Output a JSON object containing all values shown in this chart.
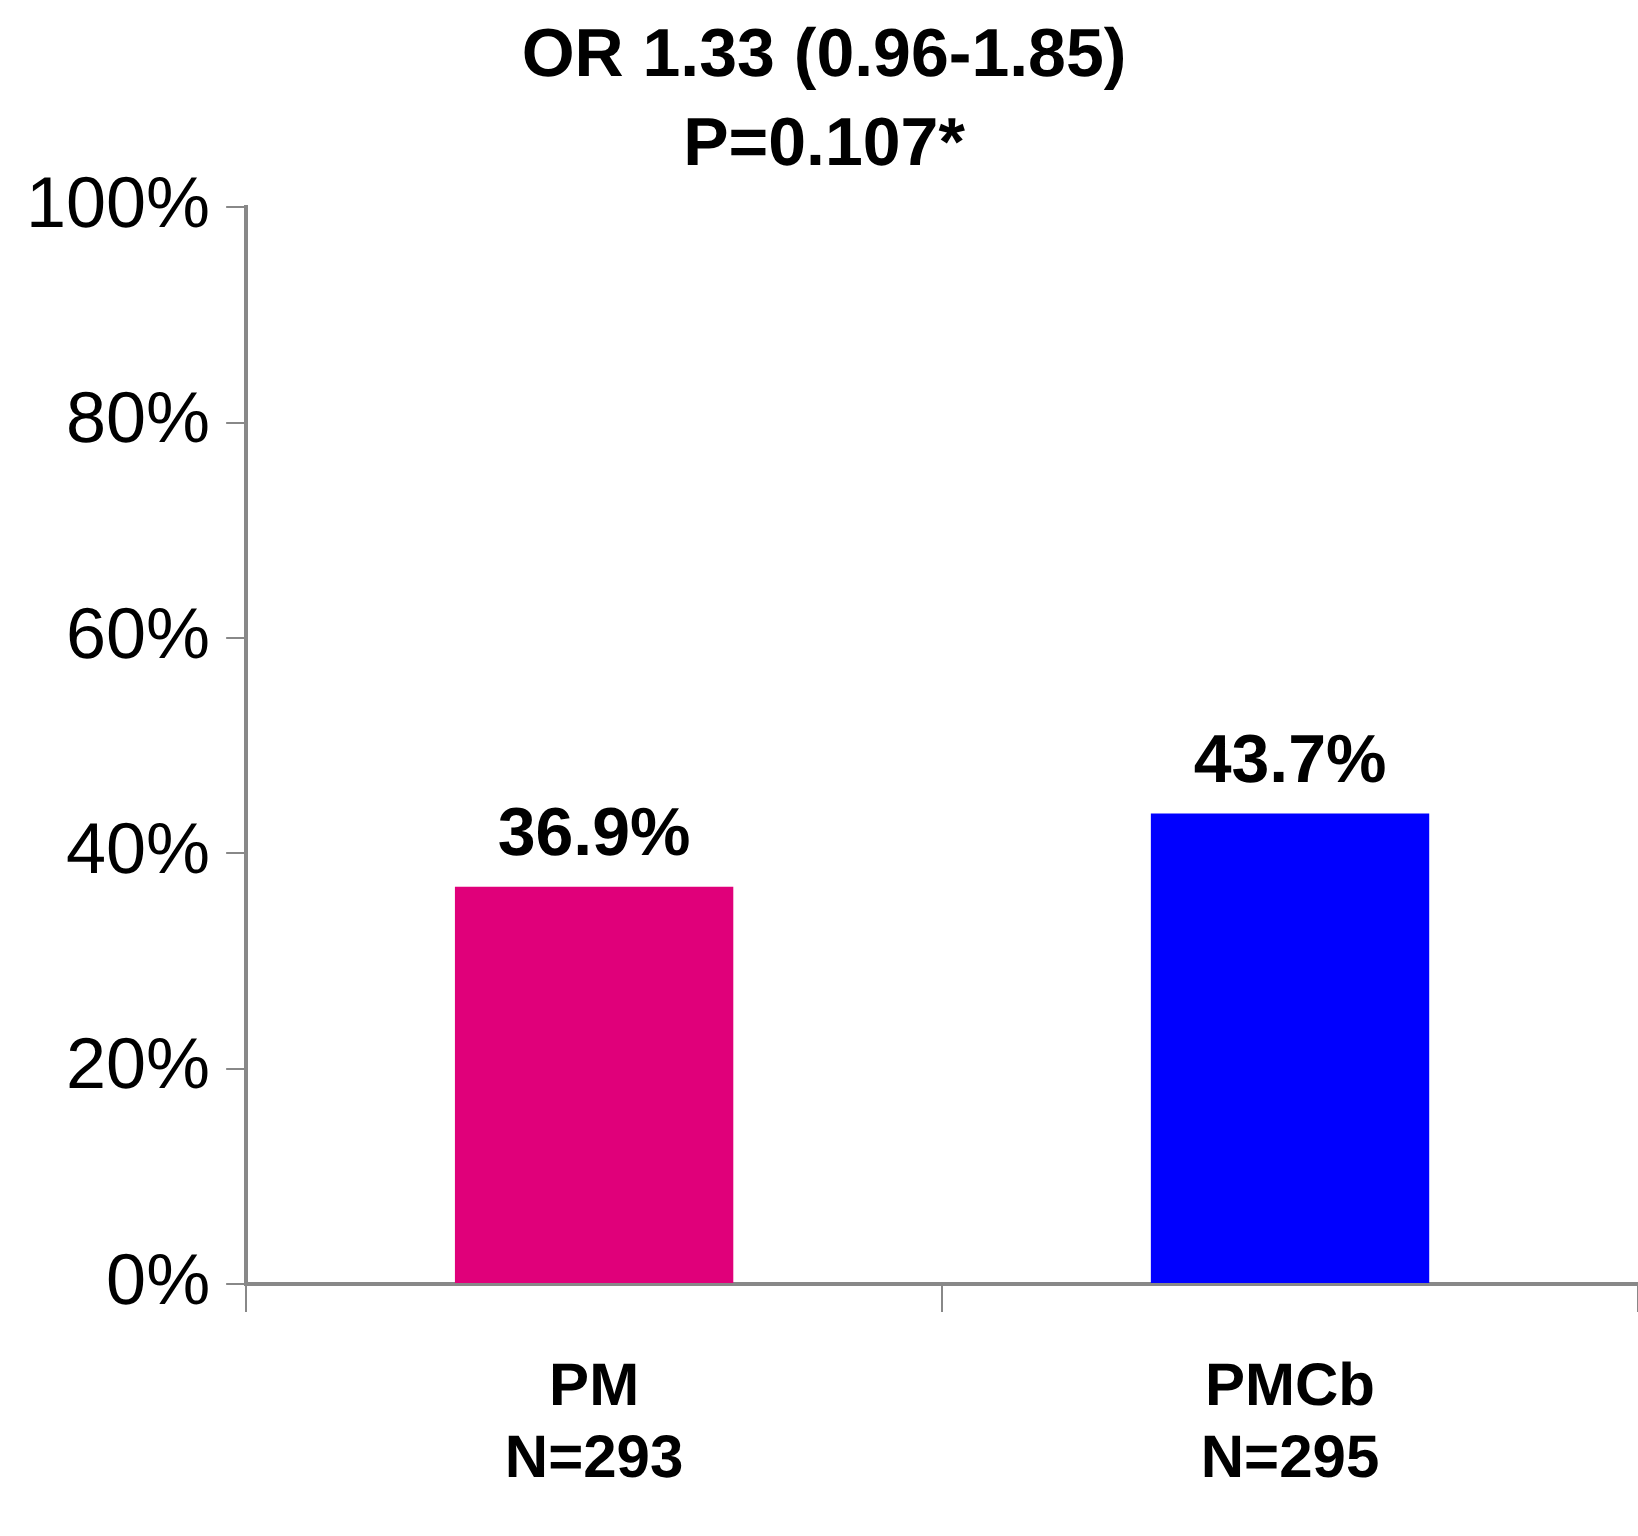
{
  "chart_data": {
    "type": "bar",
    "title": "OR 1.33 (0.96-1.85)",
    "subtitle": "P=0.107*",
    "categories": [
      "PM\nN=293",
      "PMCb\nN=295"
    ],
    "values": [
      36.9,
      43.7
    ],
    "colors": [
      "#e0007a",
      "#0000ff"
    ],
    "value_labels": [
      "36.9%",
      "43.7%"
    ],
    "ylim": [
      0,
      100
    ],
    "yticks": [
      {
        "value": 0,
        "label": "0%"
      },
      {
        "value": 20,
        "label": "20%"
      },
      {
        "value": 40,
        "label": "40%"
      },
      {
        "value": 60,
        "label": "60%"
      },
      {
        "value": 80,
        "label": "80%"
      },
      {
        "value": 100,
        "label": "100%"
      }
    ],
    "grid": false,
    "legend": false
  }
}
